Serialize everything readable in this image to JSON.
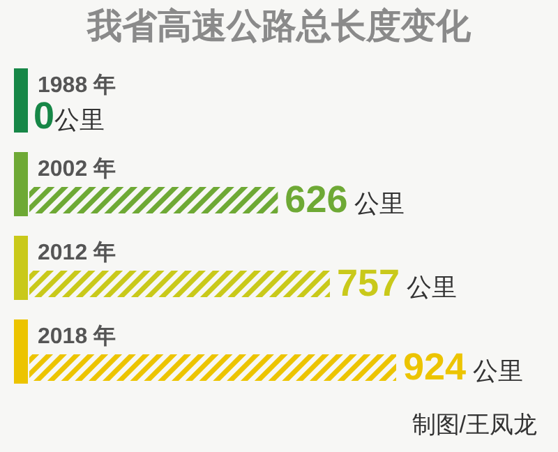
{
  "chart_data": {
    "type": "bar",
    "orientation": "horizontal",
    "title": "我省高速公路总长度变化",
    "categories": [
      "1988 年",
      "2002 年",
      "2012 年",
      "2018 年"
    ],
    "values": [
      0,
      626,
      757,
      924
    ],
    "colors": [
      "#178747",
      "#6ea935",
      "#c9c91a",
      "#ecc400"
    ],
    "value_labels": [
      "0公里",
      "626 公里",
      "757 公里",
      "924 公里"
    ],
    "annotations": [
      "制图/王凤龙"
    ]
  }
}
